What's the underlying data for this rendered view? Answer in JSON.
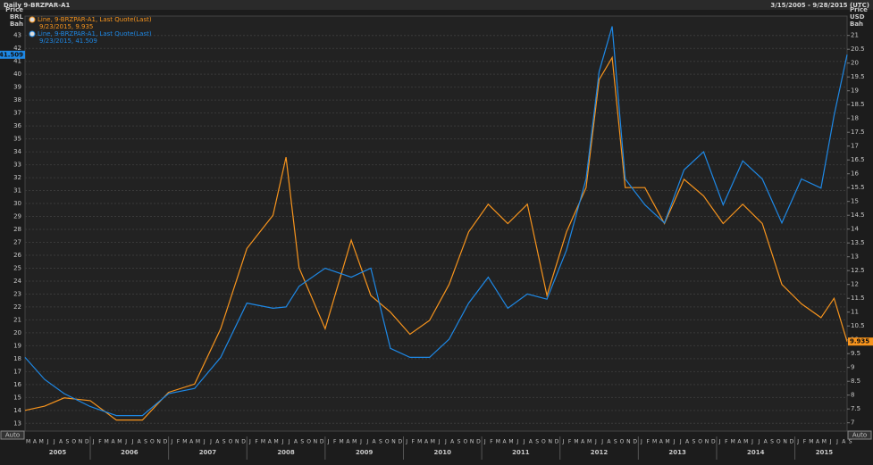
{
  "chart_data": {
    "type": "line",
    "title": "Daily 9-BRZPAR-A1",
    "subtitle": "3/15/2005 - 9/28/2015 (UTC)",
    "y_axis_label": [
      "Price",
      "BRL",
      "Bah"
    ],
    "y2_axis_label": [
      "Price",
      "USD",
      "Bah"
    ],
    "auto_label": "Auto",
    "month_letters": [
      "J",
      "F",
      "M",
      "A",
      "M",
      "J",
      "J",
      "A",
      "S",
      "O",
      "N",
      "D"
    ],
    "years": [
      "2005",
      "2006",
      "2007",
      "2008",
      "2009",
      "2010",
      "2011",
      "2012",
      "2013",
      "2014",
      "2015"
    ],
    "xlim": [
      "2005-03",
      "2015-09"
    ],
    "x": [
      "2005-03",
      "2005-06",
      "2005-09",
      "2006-01",
      "2006-05",
      "2006-09",
      "2007-01",
      "2007-05",
      "2007-09",
      "2008-01",
      "2008-05",
      "2008-07",
      "2008-09",
      "2009-01",
      "2009-05",
      "2009-08",
      "2009-11",
      "2010-02",
      "2010-05",
      "2010-08",
      "2010-11",
      "2011-02",
      "2011-05",
      "2011-08",
      "2011-11",
      "2012-02",
      "2012-05",
      "2012-07",
      "2012-09",
      "2012-11",
      "2013-02",
      "2013-05",
      "2013-08",
      "2013-11",
      "2014-02",
      "2014-05",
      "2014-08",
      "2014-11",
      "2015-02",
      "2015-05",
      "2015-07",
      "2015-09"
    ],
    "ylim": [
      12.4,
      44.5
    ],
    "yticks": [
      13,
      14,
      15,
      16,
      17,
      18,
      19,
      20,
      21,
      22,
      23,
      24,
      25,
      26,
      27,
      28,
      29,
      30,
      31,
      32,
      33,
      34,
      35,
      36,
      37,
      38,
      39,
      40,
      41,
      42,
      43
    ],
    "y2lim": [
      6.7,
      21.7
    ],
    "y2ticks": [
      7,
      7.5,
      8,
      8.5,
      9,
      9.5,
      10,
      10.5,
      11,
      11.5,
      12,
      12.5,
      13,
      13.5,
      14,
      14.5,
      15,
      15.5,
      16,
      16.5,
      17,
      17.5,
      18,
      18.5,
      19,
      19.5,
      20,
      20.5,
      21
    ],
    "grid": true,
    "series": [
      {
        "name": "Line, 9-BRZPAR-A1, Last Quote(Last)",
        "legend_detail": "9/23/2015, 9.935",
        "color": "#f7941d",
        "axis": "y2",
        "values": [
          7.45,
          7.6,
          7.9,
          7.8,
          7.1,
          7.1,
          8.1,
          8.4,
          10.4,
          13.3,
          14.5,
          16.6,
          12.6,
          10.4,
          13.6,
          11.6,
          11,
          10.2,
          10.7,
          12,
          13.9,
          14.9,
          14.2,
          14.9,
          11.6,
          13.9,
          15.5,
          19.4,
          20.2,
          15.5,
          15.5,
          14.2,
          15.8,
          15.2,
          14.2,
          14.9,
          14.2,
          12,
          11.3,
          10.8,
          11.5,
          9.935
        ]
      },
      {
        "name": "Line, 9-BRZPAR-A1, Last Quote(Last)",
        "legend_detail": "9/23/2015, 41.509",
        "color": "#1e88e5",
        "axis": "y",
        "values": [
          18.1,
          16.4,
          15.3,
          14.3,
          13.6,
          13.6,
          15.3,
          15.7,
          18.1,
          22.3,
          21.9,
          22,
          23.6,
          25,
          24.3,
          25,
          18.8,
          18.1,
          18.1,
          19.5,
          22.3,
          24.3,
          21.9,
          23,
          22.6,
          26.4,
          31.9,
          40.2,
          43.7,
          31.9,
          29.9,
          28.5,
          32.6,
          34,
          29.9,
          33.3,
          31.9,
          28.5,
          31.9,
          31.2,
          36.8,
          41.509
        ]
      }
    ]
  }
}
